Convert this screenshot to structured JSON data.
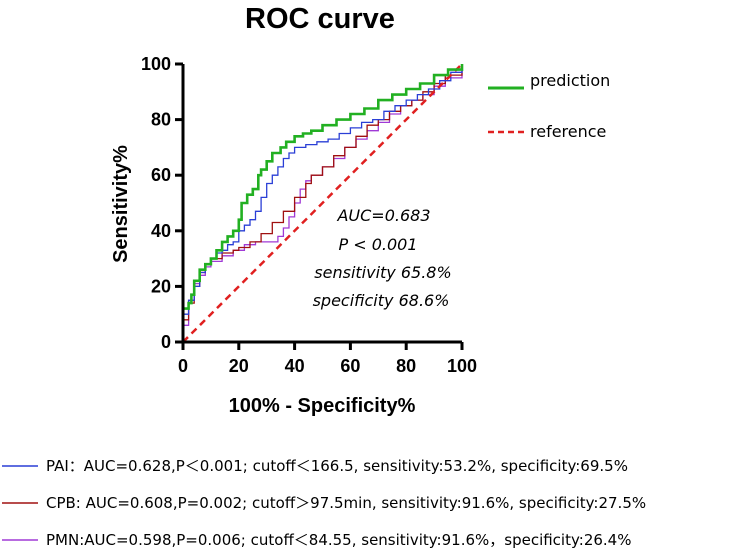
{
  "chart_data": {
    "type": "line",
    "title": "ROC curve",
    "xlabel": "100% - Specificity%",
    "ylabel": "Sensitivity%",
    "xlim": [
      0,
      100
    ],
    "ylim": [
      0,
      100
    ],
    "xticks": [
      "0",
      "20",
      "40",
      "60",
      "80",
      "100"
    ],
    "yticks": [
      "0",
      "20",
      "40",
      "60",
      "80",
      "100"
    ],
    "grid": false,
    "legend_position": "right",
    "series": [
      {
        "name": "prediction",
        "color": "#22b022",
        "style": "solid",
        "points": [
          [
            0,
            0
          ],
          [
            0,
            12
          ],
          [
            2,
            14
          ],
          [
            3,
            17
          ],
          [
            4,
            22
          ],
          [
            6,
            26
          ],
          [
            8,
            28
          ],
          [
            10,
            30
          ],
          [
            12,
            33
          ],
          [
            14,
            36
          ],
          [
            16,
            38
          ],
          [
            18,
            40
          ],
          [
            20,
            44
          ],
          [
            21,
            50
          ],
          [
            23,
            53
          ],
          [
            25,
            55
          ],
          [
            27,
            60
          ],
          [
            28,
            62
          ],
          [
            30,
            65
          ],
          [
            32,
            68
          ],
          [
            35,
            70
          ],
          [
            37,
            72
          ],
          [
            40,
            74
          ],
          [
            43,
            75
          ],
          [
            46,
            76
          ],
          [
            50,
            78
          ],
          [
            55,
            80
          ],
          [
            60,
            82
          ],
          [
            65,
            84
          ],
          [
            70,
            87
          ],
          [
            75,
            89
          ],
          [
            80,
            91
          ],
          [
            85,
            93
          ],
          [
            90,
            96
          ],
          [
            95,
            98
          ],
          [
            100,
            100
          ]
        ]
      },
      {
        "name": "reference",
        "color": "#e02020",
        "style": "dashed",
        "points": [
          [
            0,
            0
          ],
          [
            100,
            100
          ]
        ]
      },
      {
        "name": "PAI",
        "color": "#2a3fd6",
        "style": "solid",
        "points": [
          [
            0,
            0
          ],
          [
            0,
            10
          ],
          [
            2,
            15
          ],
          [
            4,
            20
          ],
          [
            6,
            25
          ],
          [
            8,
            28
          ],
          [
            10,
            30
          ],
          [
            12,
            32
          ],
          [
            14,
            33
          ],
          [
            16,
            35
          ],
          [
            18,
            36
          ],
          [
            20,
            40
          ],
          [
            22,
            42
          ],
          [
            24,
            44
          ],
          [
            26,
            47
          ],
          [
            28,
            52
          ],
          [
            30,
            57
          ],
          [
            32,
            60
          ],
          [
            34,
            63
          ],
          [
            36,
            66
          ],
          [
            38,
            68
          ],
          [
            40,
            70
          ],
          [
            44,
            71
          ],
          [
            48,
            72
          ],
          [
            52,
            73
          ],
          [
            56,
            75
          ],
          [
            60,
            77
          ],
          [
            64,
            79
          ],
          [
            68,
            80
          ],
          [
            72,
            83
          ],
          [
            76,
            85
          ],
          [
            80,
            87
          ],
          [
            84,
            89
          ],
          [
            88,
            91
          ],
          [
            92,
            94
          ],
          [
            96,
            97
          ],
          [
            100,
            100
          ]
        ]
      },
      {
        "name": "CPB",
        "color": "#a01010",
        "style": "solid",
        "points": [
          [
            0,
            0
          ],
          [
            0,
            8
          ],
          [
            2,
            14
          ],
          [
            4,
            20
          ],
          [
            6,
            25
          ],
          [
            8,
            28
          ],
          [
            10,
            30
          ],
          [
            14,
            32
          ],
          [
            18,
            33
          ],
          [
            20,
            34
          ],
          [
            24,
            36
          ],
          [
            28,
            39
          ],
          [
            32,
            43
          ],
          [
            36,
            47
          ],
          [
            40,
            52
          ],
          [
            44,
            57
          ],
          [
            46,
            60
          ],
          [
            50,
            63
          ],
          [
            54,
            67
          ],
          [
            58,
            70
          ],
          [
            62,
            74
          ],
          [
            66,
            78
          ],
          [
            70,
            80
          ],
          [
            74,
            83
          ],
          [
            78,
            85
          ],
          [
            82,
            87
          ],
          [
            86,
            90
          ],
          [
            90,
            93
          ],
          [
            94,
            96
          ],
          [
            100,
            100
          ]
        ]
      },
      {
        "name": "PMN",
        "color": "#a03ad6",
        "style": "solid",
        "points": [
          [
            0,
            0
          ],
          [
            0,
            6
          ],
          [
            2,
            15
          ],
          [
            4,
            21
          ],
          [
            6,
            24
          ],
          [
            8,
            27
          ],
          [
            10,
            29
          ],
          [
            14,
            31
          ],
          [
            18,
            33
          ],
          [
            22,
            35
          ],
          [
            26,
            36
          ],
          [
            30,
            36
          ],
          [
            34,
            38
          ],
          [
            36,
            41
          ],
          [
            38,
            45
          ],
          [
            40,
            50
          ],
          [
            42,
            55
          ],
          [
            44,
            58
          ],
          [
            46,
            60
          ],
          [
            50,
            63
          ],
          [
            54,
            66
          ],
          [
            58,
            70
          ],
          [
            62,
            73
          ],
          [
            66,
            76
          ],
          [
            70,
            79
          ],
          [
            74,
            82
          ],
          [
            78,
            85
          ],
          [
            82,
            87
          ],
          [
            86,
            89
          ],
          [
            90,
            92
          ],
          [
            94,
            95
          ],
          [
            100,
            100
          ]
        ]
      }
    ],
    "legend": [
      {
        "label": "prediction",
        "color": "#22b022",
        "style": "solid"
      },
      {
        "label": "reference",
        "color": "#e02020",
        "style": "dashed"
      }
    ],
    "annotations": [
      "AUC=0.683",
      "P < 0.001",
      "sensitivity 65.8%",
      "specificity 68.6%"
    ],
    "bottom_legend": [
      {
        "color": "#2a3fd6",
        "text": "PAI：AUC=0.628,P＜0.001; cutoff＜166.5, sensitivity:53.2%, specificity:69.5%"
      },
      {
        "color": "#a01010",
        "text": "CPB: AUC=0.608,P=0.002; cutoff＞97.5min, sensitivity:91.6%, specificity:27.5%"
      },
      {
        "color": "#a03ad6",
        "text": "PMN:AUC=0.598,P=0.006; cutoff＜84.55, sensitivity:91.6%，specificity:26.4%"
      }
    ]
  }
}
